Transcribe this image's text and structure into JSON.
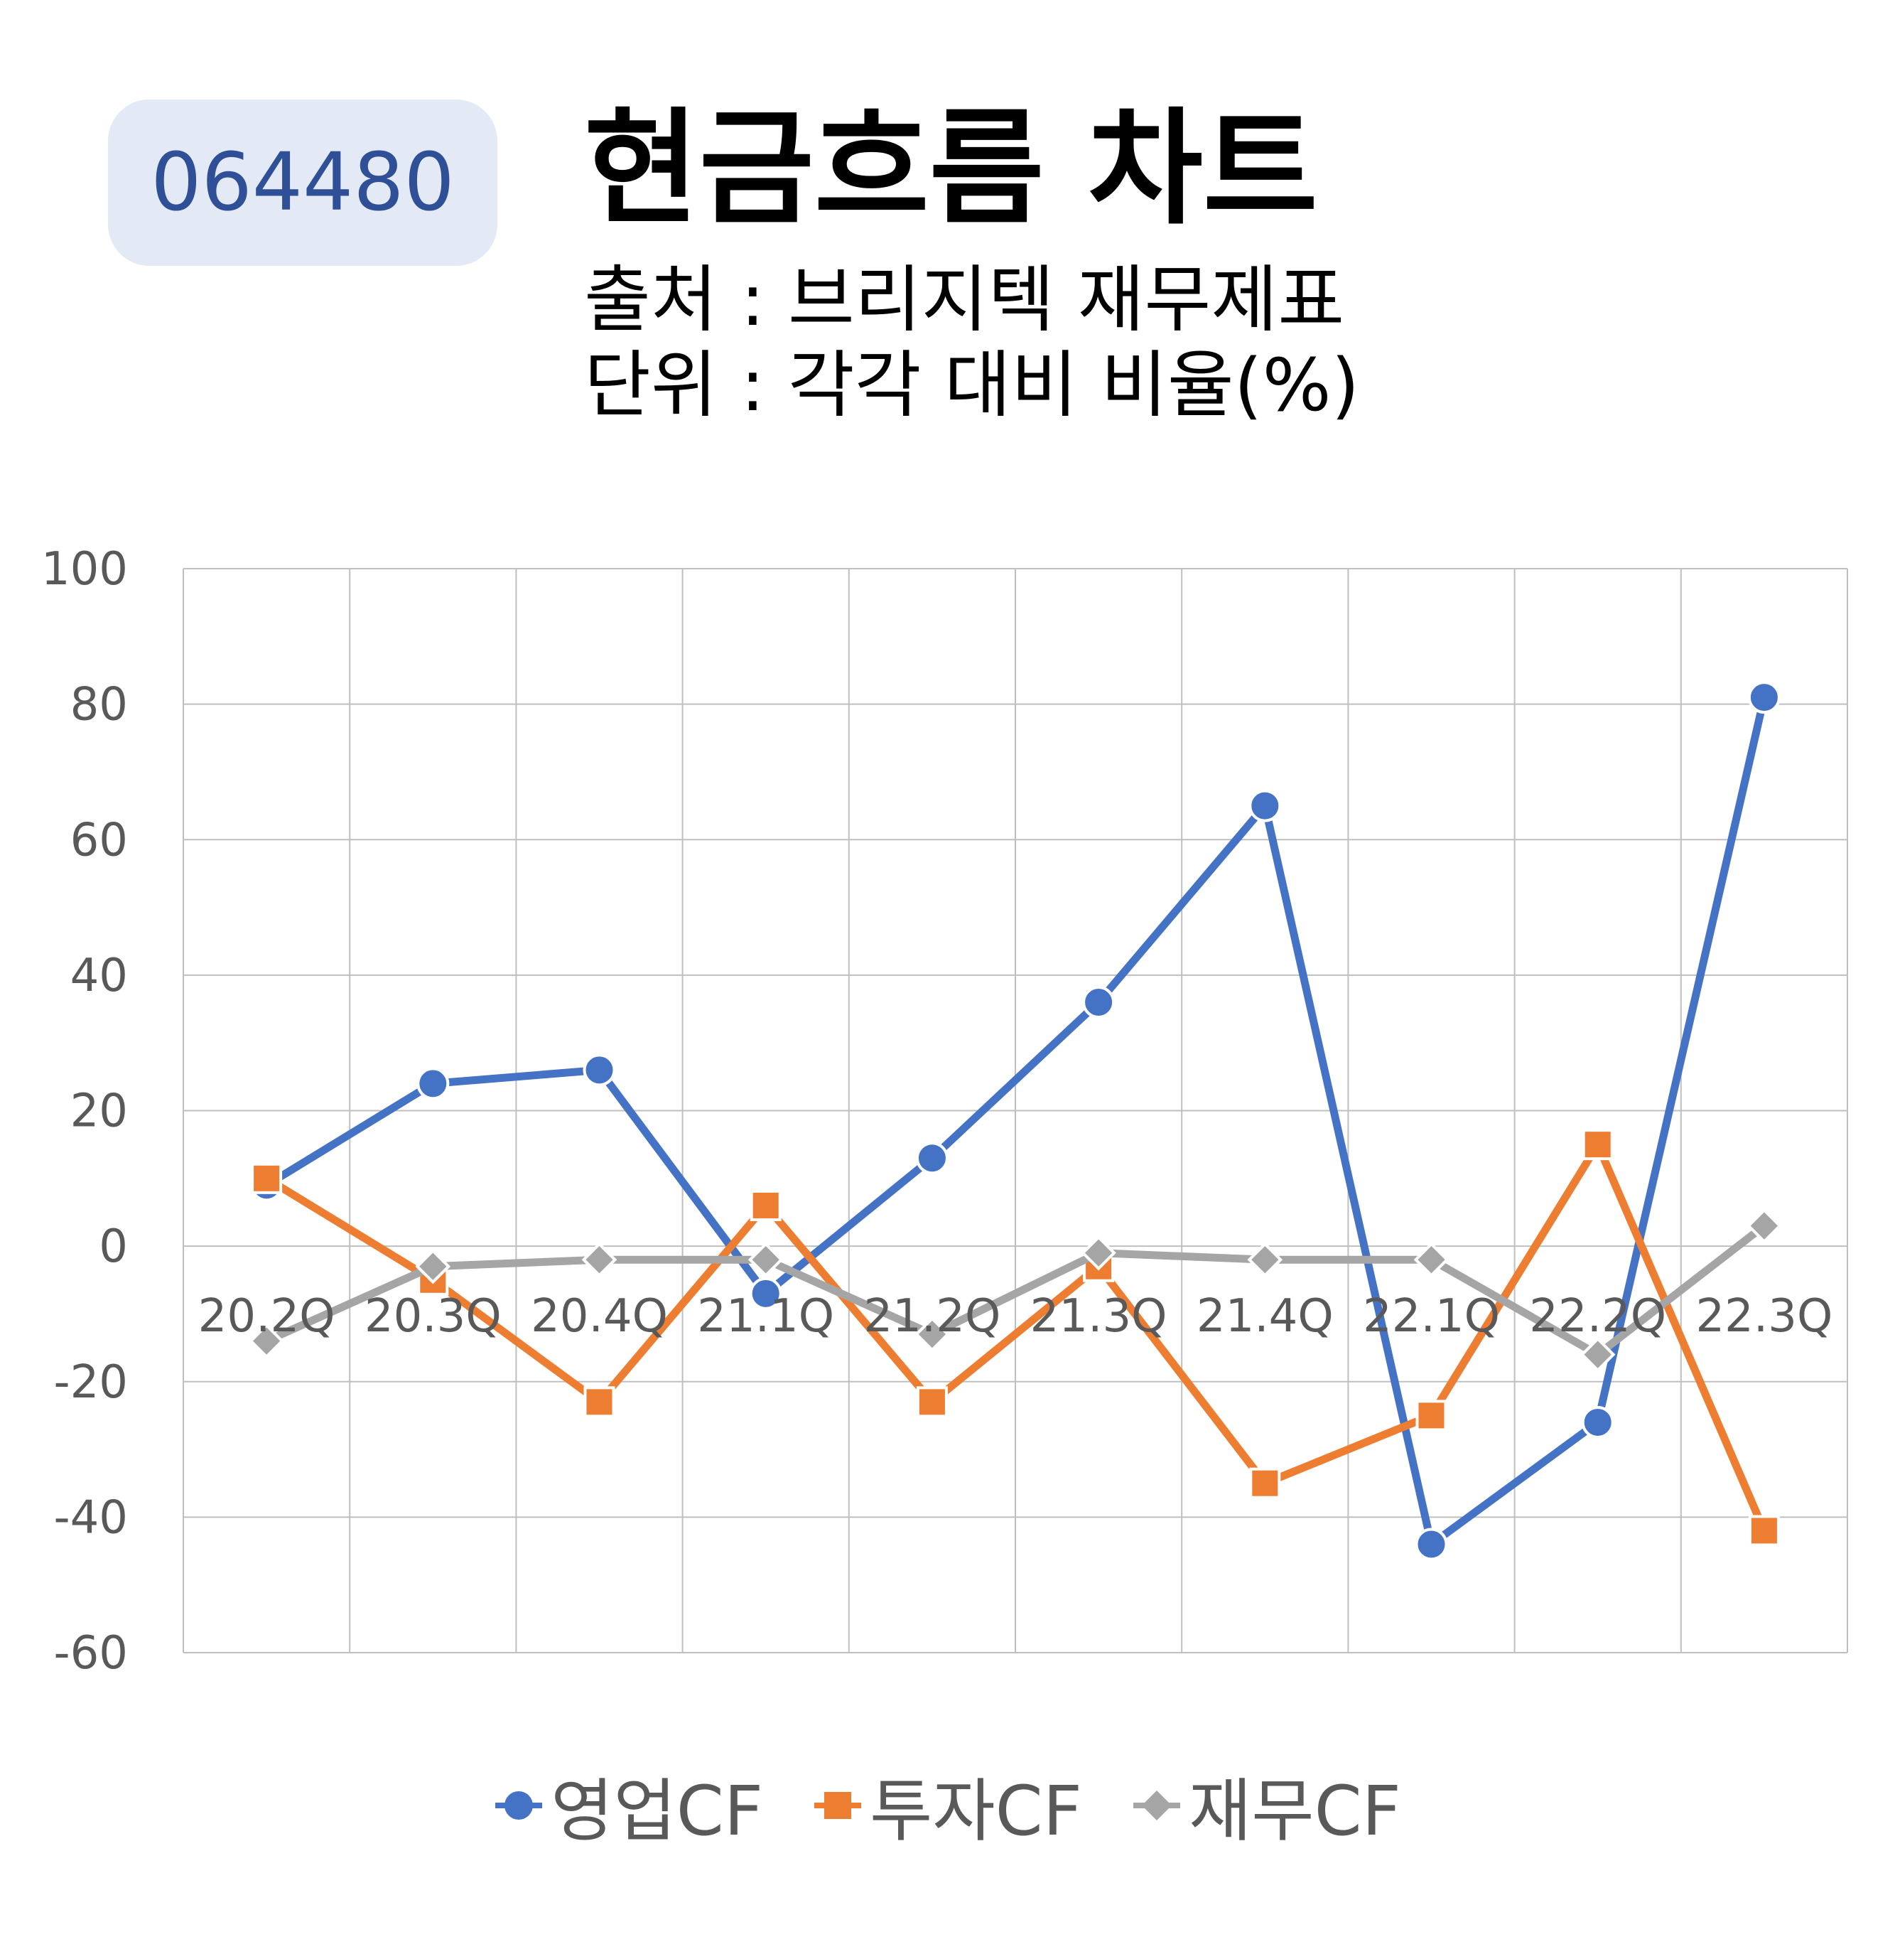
{
  "badge": {
    "code": "064480"
  },
  "header": {
    "title": "현금흐름 차트",
    "source": "출처 : 브리지텍 재무제표",
    "unit": "단위 : 각각 대비 비율(%)"
  },
  "colors": {
    "operating": "#4472c4",
    "investing": "#ed7d31",
    "financing": "#a5a5a5",
    "grid": "#bfbfbf",
    "tick_text": "#595959",
    "badge_bg": "#e3e9f5",
    "badge_text": "#2f4f96"
  },
  "chart_data": {
    "type": "line",
    "title": "",
    "xlabel": "",
    "ylabel": "",
    "categories": [
      "20.2Q",
      "20.3Q",
      "20.4Q",
      "21.1Q",
      "21.2Q",
      "21.3Q",
      "21.4Q",
      "22.1Q",
      "22.2Q",
      "22.3Q"
    ],
    "ylim": [
      -60,
      100
    ],
    "yticks": [
      100,
      80,
      60,
      40,
      20,
      0,
      -20,
      -40,
      -60
    ],
    "grid": true,
    "legend_position": "bottom",
    "series": [
      {
        "name": "영업CF",
        "marker": "circle",
        "values": [
          9,
          24,
          26,
          -7,
          13,
          36,
          65,
          -44,
          -26,
          81
        ]
      },
      {
        "name": "투자CF",
        "marker": "square",
        "values": [
          10,
          -5,
          -23,
          6,
          -23,
          -3,
          -35,
          -25,
          15,
          -42
        ]
      },
      {
        "name": "재무CF",
        "marker": "diamond",
        "values": [
          -14,
          -3,
          -2,
          -2,
          -13,
          -1,
          -2,
          -2,
          -16,
          3
        ]
      }
    ]
  }
}
